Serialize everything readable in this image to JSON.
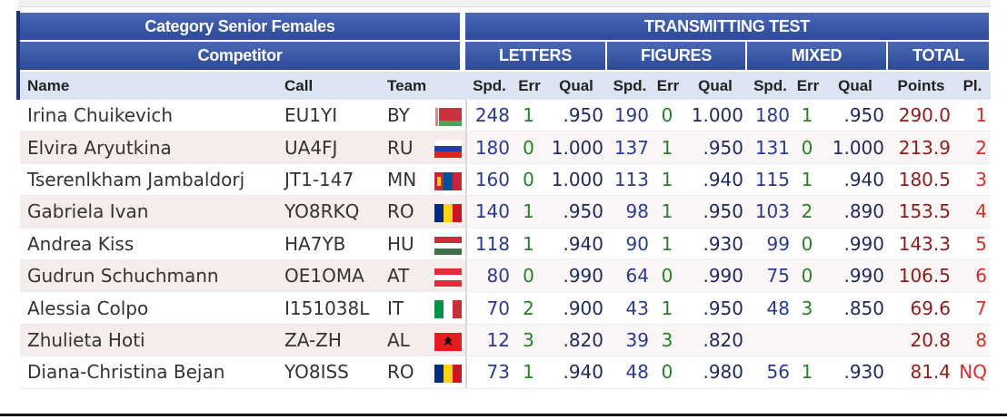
{
  "header": {
    "category": "Category Senior Females",
    "competitor": "Competitor",
    "test": "TRANSMITTING TEST",
    "groups": [
      "LETTERS",
      "FIGURES",
      "MIXED",
      "TOTAL"
    ]
  },
  "table": {
    "columns": [
      "Name",
      "Call",
      "Team",
      "Spd.",
      "Err",
      "Qual",
      "Spd.",
      "Err",
      "Qual",
      "Spd.",
      "Err",
      "Qual",
      "Points",
      "Pl."
    ],
    "rows": [
      [
        "Irina Chuikevich",
        "EU1YI",
        "BY",
        248,
        1,
        ".950",
        190,
        0,
        "1.000",
        180,
        1,
        ".950",
        "290.0",
        1
      ],
      [
        "Elvira Aryutkina",
        "UA4FJ",
        "RU",
        180,
        0,
        "1.000",
        137,
        1,
        ".950",
        131,
        0,
        "1.000",
        "213.9",
        2
      ],
      [
        "Tserenlkham Jambaldorj",
        "JT1-147",
        "MN",
        160,
        0,
        "1.000",
        113,
        1,
        ".940",
        115,
        1,
        ".940",
        "180.5",
        3
      ],
      [
        "Gabriela Ivan",
        "YO8RKQ",
        "RO",
        140,
        1,
        ".950",
        98,
        1,
        ".950",
        103,
        2,
        ".890",
        "153.5",
        4
      ],
      [
        "Andrea Kiss",
        "HA7YB",
        "HU",
        118,
        1,
        ".940",
        90,
        1,
        ".930",
        99,
        0,
        ".990",
        "143.3",
        5
      ],
      [
        "Gudrun Schuchmann",
        "OE1OMA",
        "AT",
        80,
        0,
        ".990",
        64,
        0,
        ".990",
        75,
        0,
        ".990",
        "106.5",
        6
      ],
      [
        "Alessia Colpo",
        "I151038L",
        "IT",
        70,
        2,
        ".900",
        43,
        1,
        ".950",
        48,
        3,
        ".850",
        "69.6",
        7
      ],
      [
        "Zhulieta Hoti",
        "ZA-ZH",
        "AL",
        12,
        3,
        ".820",
        39,
        3,
        ".820",
        null,
        null,
        null,
        "20.8",
        8
      ],
      [
        "Diana-Christina Bejan",
        "YO8ISS",
        "RO",
        73,
        1,
        ".940",
        48,
        0,
        ".980",
        56,
        1,
        ".930",
        "81.4",
        "NQ"
      ]
    ]
  }
}
